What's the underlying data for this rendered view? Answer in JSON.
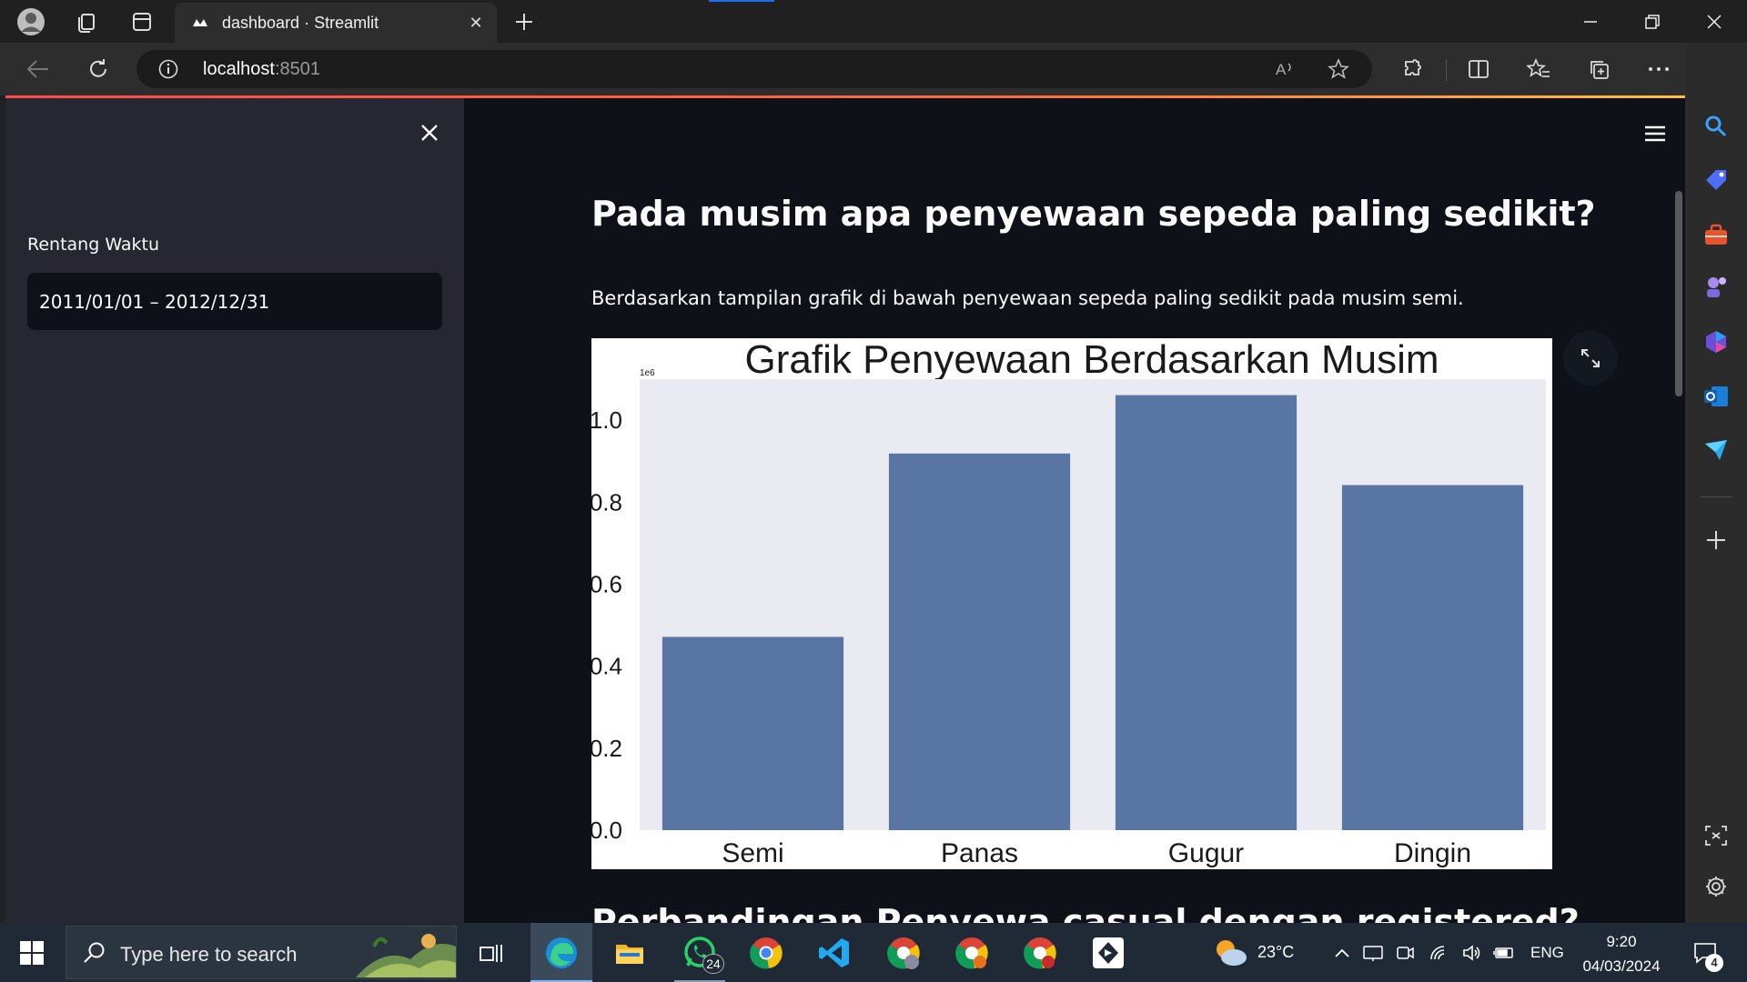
{
  "browser": {
    "tab_title": "dashboard · Streamlit",
    "url_host": "localhost",
    "url_port": ":8501"
  },
  "sidebar": {
    "date_label": "Rentang Waktu",
    "date_value": "2011/01/01 – 2012/12/31"
  },
  "main": {
    "heading": "Pada musim apa penyewaan sepeda paling sedikit?",
    "paragraph": "Berdasarkan tampilan grafik di bawah penyewaan sepeda paling sedikit pada musim semi.",
    "next_heading": "Perbandingan Penyewa casual dengan registered?"
  },
  "chart_data": {
    "type": "bar",
    "title": "Grafik Penyewaan Berdasarkan Musim",
    "categories": [
      "Semi",
      "Panas",
      "Gugur",
      "Dingin"
    ],
    "values": [
      471348,
      918589,
      1061129,
      841613
    ],
    "ylim": [
      0,
      1100000
    ],
    "yticks": [
      "0.0",
      "0.2",
      "0.4",
      "0.6",
      "0.8",
      "1.0"
    ],
    "y_offset_label": "1e6",
    "xlabel": "",
    "ylabel": "",
    "bar_color": "#5975a4",
    "plot_bg": "#eaeaf2",
    "grid": false
  },
  "taskbar": {
    "search_placeholder": "Type here to search",
    "whatsapp_badge": "24",
    "temperature": "23°C",
    "language": "ENG",
    "time": "9:20",
    "date": "04/03/2024",
    "notification_count": "4"
  }
}
